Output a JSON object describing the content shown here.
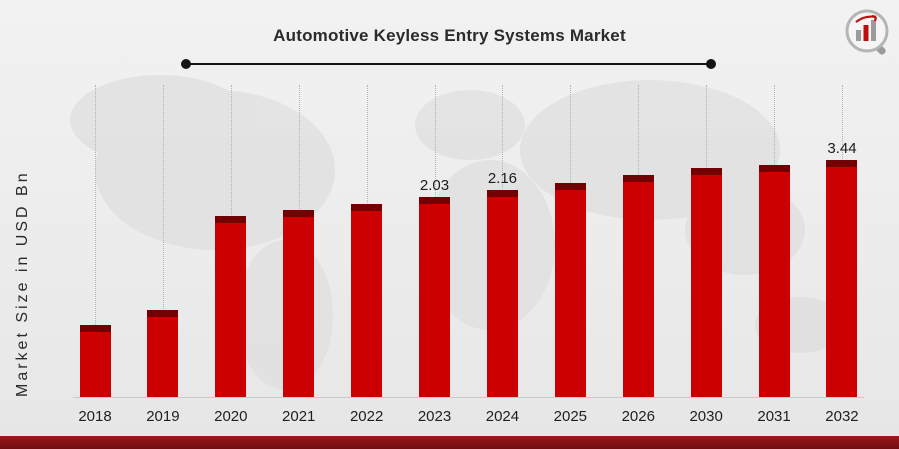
{
  "chart_data": {
    "type": "bar",
    "title": "Automotive Keyless Entry Systems Market",
    "ylabel": "Market Size in USD Bn",
    "categories": [
      "2018",
      "2019",
      "2020",
      "2021",
      "2022",
      "2023",
      "2024",
      "2025",
      "2026",
      "2030",
      "2031",
      "2032"
    ],
    "values": [
      0.7,
      0.85,
      1.74,
      1.8,
      1.87,
      2.03,
      2.16,
      2.29,
      2.43,
      3.22,
      3.3,
      3.44
    ],
    "data_labels": [
      "",
      "",
      "",
      "",
      "",
      "2.03",
      "2.16",
      "",
      "",
      "",
      "",
      "3.44"
    ],
    "unit": "USD Bn",
    "ylim": [
      0,
      4
    ],
    "grid": "dotted-vertical",
    "legend": "none",
    "render_heights_pct": [
      23,
      28,
      58,
      60,
      62,
      64,
      66.5,
      68.5,
      71,
      73.5,
      74.5,
      76
    ],
    "colors": {
      "bar": "#cc0001",
      "bar_cap": "#730104",
      "timeline": "#141414",
      "footer": "#6f0e12",
      "footer_light": "#9c181b"
    }
  }
}
